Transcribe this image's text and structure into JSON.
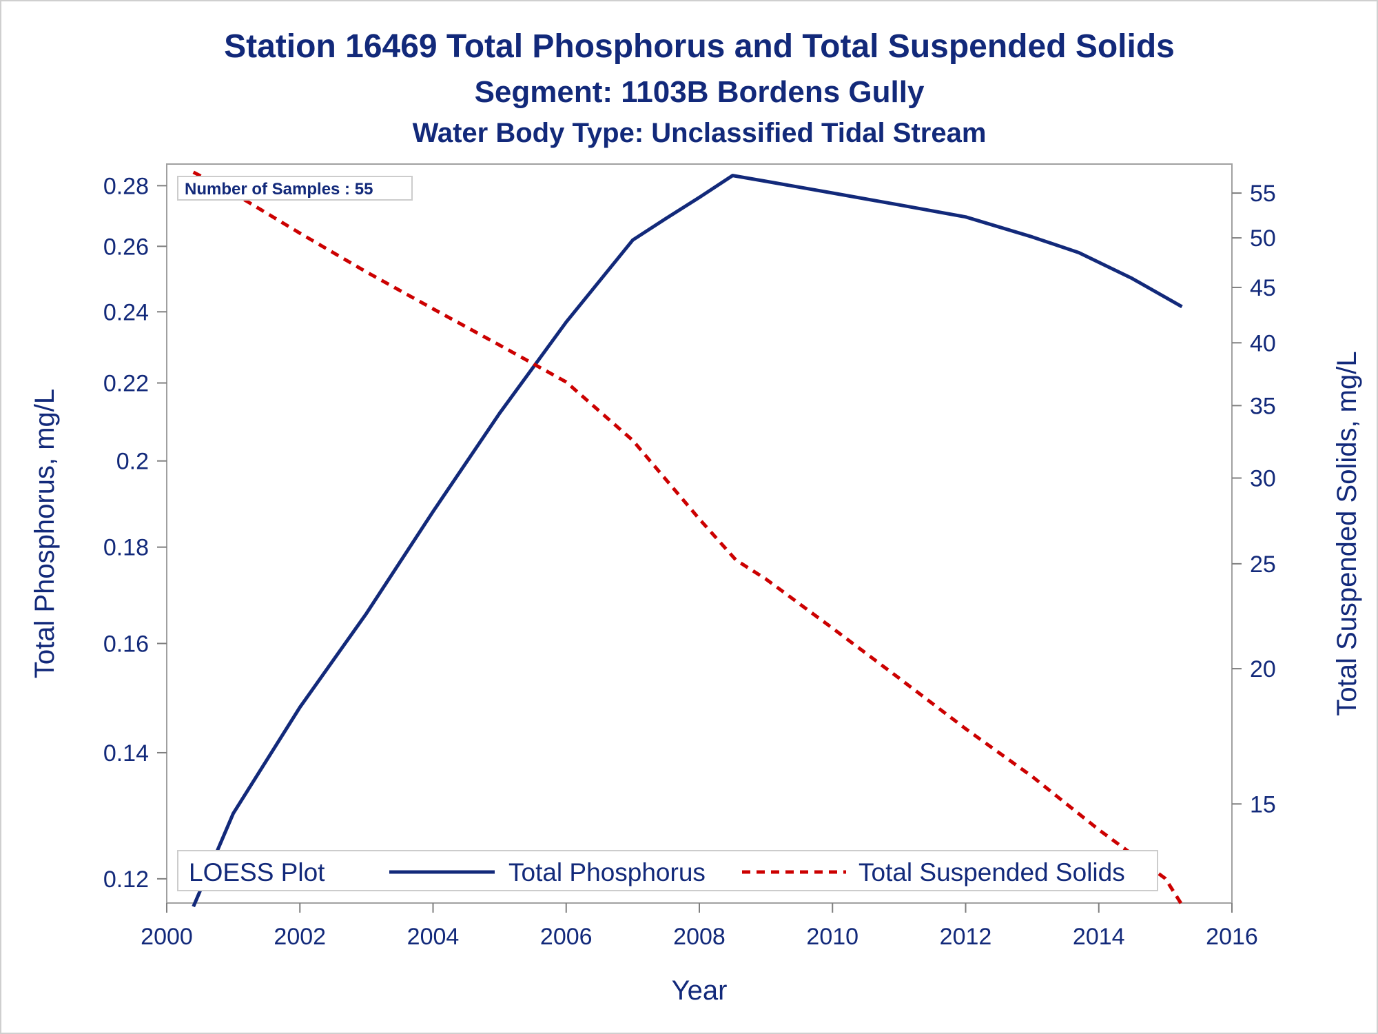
{
  "chart_data": {
    "type": "line",
    "title": "Station 16469  Total Phosphorus and Total Suspended Solids",
    "subtitle": "Segment: 1103B  Bordens Gully",
    "subtitle2": "Water Body Type: Unclassified Tidal Stream",
    "xlabel": "Year",
    "ylabel_left": "Total Phosphorus, mg/L",
    "ylabel_right": "Total Suspended Solids, mg/L",
    "x_ticks": [
      "2000",
      "2002",
      "2004",
      "2006",
      "2008",
      "2010",
      "2012",
      "2014",
      "2016"
    ],
    "x_range": [
      2000,
      2016
    ],
    "yleft_ticks": [
      "0.12",
      "0.14",
      "0.16",
      "0.18",
      "0.2",
      "0.22",
      "0.24",
      "0.26",
      "0.28"
    ],
    "yleft_scale": "log",
    "yleft_range": [
      0.1165,
      0.2875
    ],
    "yright_ticks": [
      "15",
      "20",
      "25",
      "30",
      "35",
      "40",
      "45",
      "50",
      "55"
    ],
    "yright_scale": "log",
    "yright_range": [
      12.15,
      58.5
    ],
    "inset": "Number of Samples : 55",
    "legend": {
      "title": "LOESS Plot",
      "placement": "bottom-inside",
      "entries": [
        "Total Phosphorus",
        "Total Suspended Solids"
      ]
    },
    "series": [
      {
        "name": "Total Phosphorus",
        "axis": "left",
        "color": "#12297a",
        "style": "solid",
        "x": [
          2000.4,
          2001,
          2002,
          2003,
          2004,
          2005,
          2006,
          2007,
          2007.5,
          2008,
          2008.5,
          2009,
          2010,
          2011,
          2012,
          2013,
          2013.7,
          2014.5,
          2015.25
        ],
        "y": [
          0.116,
          0.13,
          0.148,
          0.166,
          0.188,
          0.212,
          0.237,
          0.262,
          0.269,
          0.276,
          0.2835,
          0.2815,
          0.2775,
          0.2735,
          0.2695,
          0.263,
          0.258,
          0.25,
          0.2415
        ]
      },
      {
        "name": "Total Suspended Solids",
        "axis": "right",
        "color": "#cc0000",
        "style": "dashed",
        "x": [
          2000.4,
          2001,
          2002,
          2003,
          2004,
          2005,
          2006,
          2007,
          2008,
          2008.55,
          2009,
          2010,
          2011,
          2012,
          2013,
          2014,
          2015,
          2015.25
        ],
        "y": [
          57.5,
          55,
          50.5,
          46.5,
          43,
          39.8,
          36.8,
          32.5,
          27.5,
          25.2,
          24.2,
          21.8,
          19.6,
          17.6,
          15.9,
          14.2,
          12.8,
          12.1
        ]
      }
    ]
  }
}
